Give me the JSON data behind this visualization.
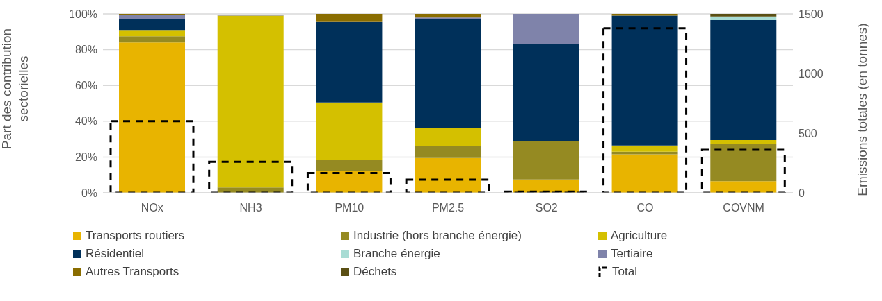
{
  "chart_data": {
    "type": "bar",
    "stacked": true,
    "categories": [
      "NOx",
      "NH3",
      "PM10",
      "PM2.5",
      "SO2",
      "CO",
      "COVNM"
    ],
    "ylabel": "Part des contribution sectorielles",
    "y2label": "Emissions totales (en tonnes)",
    "ylim": [
      0,
      100
    ],
    "yticks": [
      {
        "value": 0,
        "label": "0%"
      },
      {
        "value": 20,
        "label": "20%"
      },
      {
        "value": 40,
        "label": "40%"
      },
      {
        "value": 60,
        "label": "60%"
      },
      {
        "value": 80,
        "label": "80%"
      },
      {
        "value": 100,
        "label": "100%"
      }
    ],
    "y2lim": [
      0,
      1500
    ],
    "y2ticks": [
      0,
      500,
      1000,
      1500
    ],
    "grid": "y",
    "legend": "bottom",
    "series": [
      {
        "name": "Transports routiers",
        "color": "#e8b400",
        "values": [
          84,
          null,
          12,
          19.5,
          7.5,
          21.5,
          6.5
        ]
      },
      {
        "name": "Industrie (hors branche énergie)",
        "color": "#958a22",
        "values": [
          3.5,
          3,
          6.5,
          6.5,
          21.5,
          1.5,
          21
        ]
      },
      {
        "name": "Agriculture",
        "color": "#d4c000",
        "values": [
          3.5,
          96,
          32,
          10,
          0,
          3.5,
          2
        ]
      },
      {
        "name": "Résidentiel",
        "color": "#00305a",
        "values": [
          6,
          0,
          45,
          61,
          54,
          72.5,
          67
        ]
      },
      {
        "name": "Branche énergie",
        "color": "#a8dcd4",
        "values": [
          0,
          0,
          0,
          0,
          0,
          0,
          2
        ]
      },
      {
        "name": "Tertiaire",
        "color": "#7f83aa",
        "values": [
          2.3,
          0.5,
          0.3,
          1,
          17,
          0,
          0
        ]
      },
      {
        "name": "Autres Transports",
        "color": "#8a6d00",
        "values": [
          0.7,
          0,
          4.2,
          2,
          0,
          1,
          0
        ]
      },
      {
        "name": "Déchets",
        "color": "#5a4f14",
        "values": [
          0,
          0,
          0,
          0,
          0,
          0,
          1.5
        ]
      },
      {
        "name": "Total",
        "type": "bar",
        "axis": "y2",
        "color": "#000000",
        "line_style": "dashed",
        "values": [
          600,
          260,
          165,
          110,
          10,
          1380,
          360
        ]
      }
    ]
  }
}
